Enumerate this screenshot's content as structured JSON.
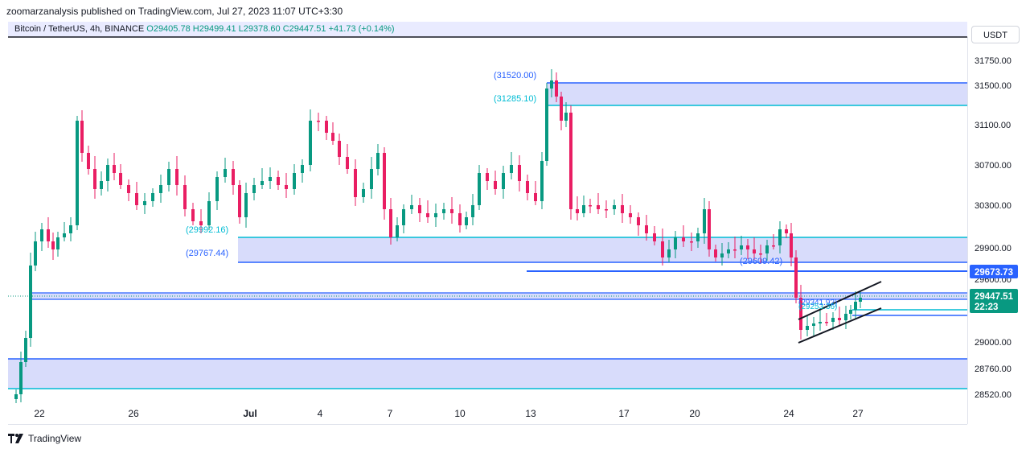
{
  "header": {
    "publisher": "zoomarzanalysis published on TradingView.com, Jul 27, 2023 11:07 UTC+3:30"
  },
  "symbol_bar": {
    "name": "Bitcoin / TetherUS, 4h, BINANCE",
    "open": "O29405.78",
    "high": "H29499.41",
    "low": "L29378.60",
    "close": "C29447.51",
    "change": "+41.73 (+0.14%)"
  },
  "currency": "USDT",
  "footer": {
    "brand": "TradingView"
  },
  "colors": {
    "up": "#089981",
    "down": "#e91e63",
    "zone_fill": "#d8dcfb",
    "blue_line": "#2962ff",
    "cyan_line": "#00bcd4"
  },
  "chart_data": {
    "type": "candlestick",
    "y_axis_ticks": [
      "31750.00",
      "31500.00",
      "31100.00",
      "30700.00",
      "30300.00",
      "29900.00",
      "29600.00",
      "29000.00",
      "28760.00",
      "28520.00"
    ],
    "x_axis_ticks": [
      "22",
      "26",
      "Jul",
      "4",
      "7",
      "10",
      "13",
      "17",
      "20",
      "24",
      "27"
    ],
    "price_tags": {
      "marked_level": "29673.73",
      "last_price": "29447.51",
      "countdown": "22:23"
    },
    "zones": [
      {
        "from": 31520.0,
        "to": 31285.1,
        "labels": [
          "(31520.00)",
          "(31285.10)"
        ]
      },
      {
        "from": 29992.16,
        "to": 29767.44,
        "labels": [
          "(29992.16)",
          "(29767.44)"
        ]
      },
      {
        "from": 28840,
        "to": 28575,
        "labels": []
      }
    ],
    "level_labels": [
      "(29609.42)",
      "(29341.92)",
      "(29253.36)"
    ],
    "channel": {
      "shape": "rising-channel"
    }
  }
}
